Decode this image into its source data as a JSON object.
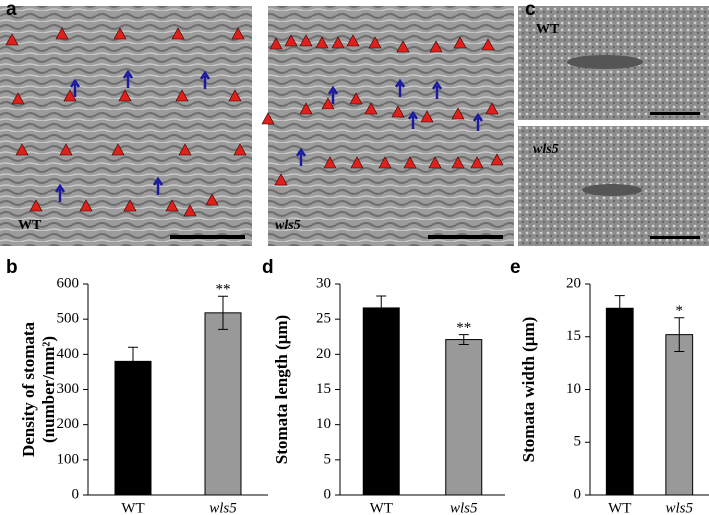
{
  "figure": {
    "panel_labels": [
      "a",
      "b",
      "c",
      "d",
      "e"
    ],
    "image_labels": [
      "WT",
      "wls5",
      "WT",
      "wls5"
    ]
  },
  "chart_data": [
    {
      "type": "bar",
      "ylabel": [
        "Density of stomata",
        "(number/mm²)"
      ],
      "categories": [
        "WT",
        "wls5"
      ],
      "values": [
        380,
        518
      ],
      "errors": [
        40,
        47
      ],
      "significance": [
        null,
        "**"
      ],
      "colors": [
        "#000000",
        "#999999"
      ],
      "ylim": [
        0,
        600
      ],
      "yticks": [
        0,
        100,
        200,
        300,
        400,
        500,
        600
      ]
    },
    {
      "type": "bar",
      "ylabel": [
        "Stomata length (μm)"
      ],
      "categories": [
        "WT",
        "wls5"
      ],
      "values": [
        26.6,
        22.1
      ],
      "errors": [
        1.7,
        0.7
      ],
      "significance": [
        null,
        "**"
      ],
      "colors": [
        "#000000",
        "#999999"
      ],
      "ylim": [
        0,
        30
      ],
      "yticks": [
        0,
        5,
        10,
        15,
        20,
        25,
        30
      ]
    },
    {
      "type": "bar",
      "ylabel": [
        "Stomata width (μm)"
      ],
      "categories": [
        "WT",
        "wls5"
      ],
      "values": [
        17.7,
        15.2
      ],
      "errors": [
        1.2,
        1.6
      ],
      "significance": [
        null,
        "*"
      ],
      "colors": [
        "#000000",
        "#999999"
      ],
      "ylim": [
        0,
        20
      ],
      "yticks": [
        0,
        5,
        10,
        15,
        20
      ]
    }
  ]
}
